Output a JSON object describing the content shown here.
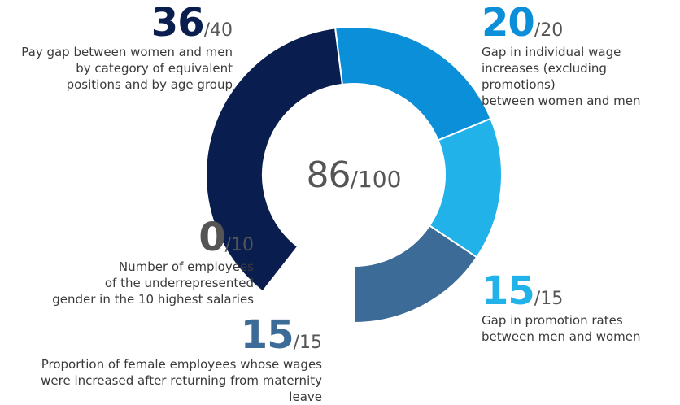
{
  "chart_data": {
    "type": "pie",
    "donut": true,
    "total": {
      "score": "86",
      "max": "/100"
    },
    "segments": [
      {
        "score": "36",
        "max": "/40",
        "value": 36,
        "color": "#0a1d4f",
        "label": "Pay gap between women and men by category of equivalent positions and by age group",
        "lines": [
          "Pay gap between women and men",
          "by category of equivalent",
          "positions and by age group"
        ]
      },
      {
        "score": "20",
        "max": "/20",
        "value": 20,
        "color": "#0a8fd8",
        "label": "Gap in individual wage increases (excluding promotions) between women and men",
        "lines": [
          "Gap in individual wage",
          "increases (excluding promotions)",
          "between women and men"
        ]
      },
      {
        "score": "15",
        "max": "/15",
        "value": 15,
        "color": "#22b2ea",
        "label": "Gap in promotion rates between men and women",
        "lines": [
          "Gap in promotion rates",
          "between men and women"
        ]
      },
      {
        "score": "15",
        "max": "/15",
        "value": 15,
        "color": "#3d6b97",
        "label": "Proportion of female employees whose wages were increased after returning from maternity leave",
        "lines": [
          "Proportion of female employees whose wages",
          "were increased after returning from maternity leave"
        ]
      },
      {
        "score": "0",
        "max": "/10",
        "value": 0,
        "color": "#999999",
        "label": "Number of employees of the underrepresented gender in the 10 highest salaries",
        "lines": [
          "Number of employees",
          "of the underrepresented",
          "gender in the 10 highest salaries"
        ]
      }
    ]
  }
}
